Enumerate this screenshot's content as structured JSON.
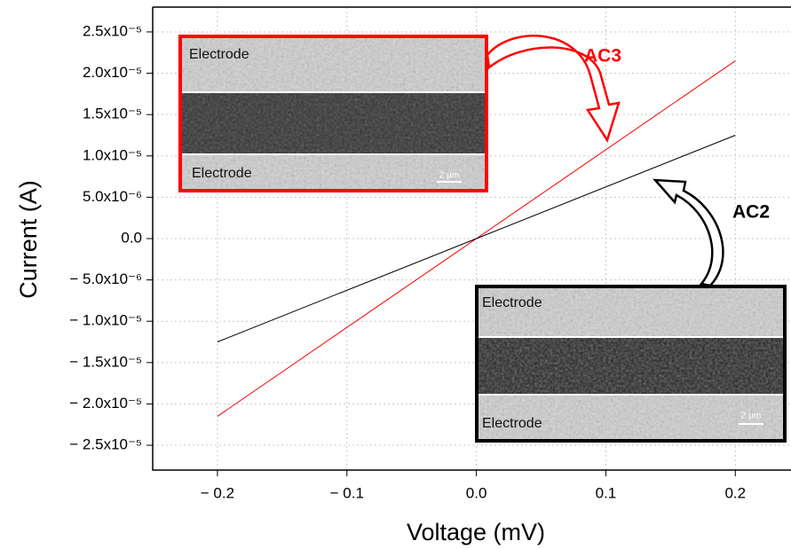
{
  "chart_data": {
    "type": "line",
    "x_label": "Voltage (mV)",
    "y_label": "Current (A)",
    "x": [
      -0.2,
      0,
      0.2
    ],
    "series": [
      {
        "name": "AC3",
        "color": "#ff0000",
        "values": [
          -2.15e-05,
          0,
          2.15e-05
        ]
      },
      {
        "name": "AC2",
        "color": "#000000",
        "values": [
          -1.25e-05,
          0,
          1.25e-05
        ]
      }
    ],
    "xlim": [
      -0.25,
      0.243
    ],
    "ylim": [
      -2.8e-05,
      2.8e-05
    ],
    "xticks": [
      {
        "value": -0.2,
        "label": "− 0.2"
      },
      {
        "value": -0.1,
        "label": "− 0.1"
      },
      {
        "value": 0,
        "label": "0.0"
      },
      0.1,
      0.2
    ],
    "yticks": [
      {
        "value": 2.5e-05,
        "label": "2.5x10⁻⁵"
      },
      {
        "value": 2e-05,
        "label": "2.0x10⁻⁵"
      },
      {
        "value": 1.5e-05,
        "label": "1.5x10⁻⁵"
      },
      {
        "value": 1e-05,
        "label": "1.0x10⁻⁵"
      },
      {
        "value": 5e-06,
        "label": "5.0x10⁻⁶"
      },
      {
        "value": 0,
        "label": "0.0"
      },
      {
        "value": -5e-06,
        "label": "− 5.0x10⁻⁶"
      },
      {
        "value": -1e-05,
        "label": "− 1.0x10⁻⁵"
      },
      {
        "value": -1.5e-05,
        "label": "− 1.5x10⁻⁵"
      },
      {
        "value": -2e-05,
        "label": "− 2.0x10⁻⁵"
      },
      {
        "value": -2.5e-05,
        "label": "− 2.5x10⁻⁵"
      }
    ],
    "grid": true,
    "insets": [
      {
        "top_label": "Electrode",
        "bottom_label": "Electrode",
        "scale_bar": "2 µm"
      },
      {
        "top_label": "Electrode",
        "bottom_label": "Electrode",
        "scale_bar": "2 µm"
      }
    ]
  }
}
